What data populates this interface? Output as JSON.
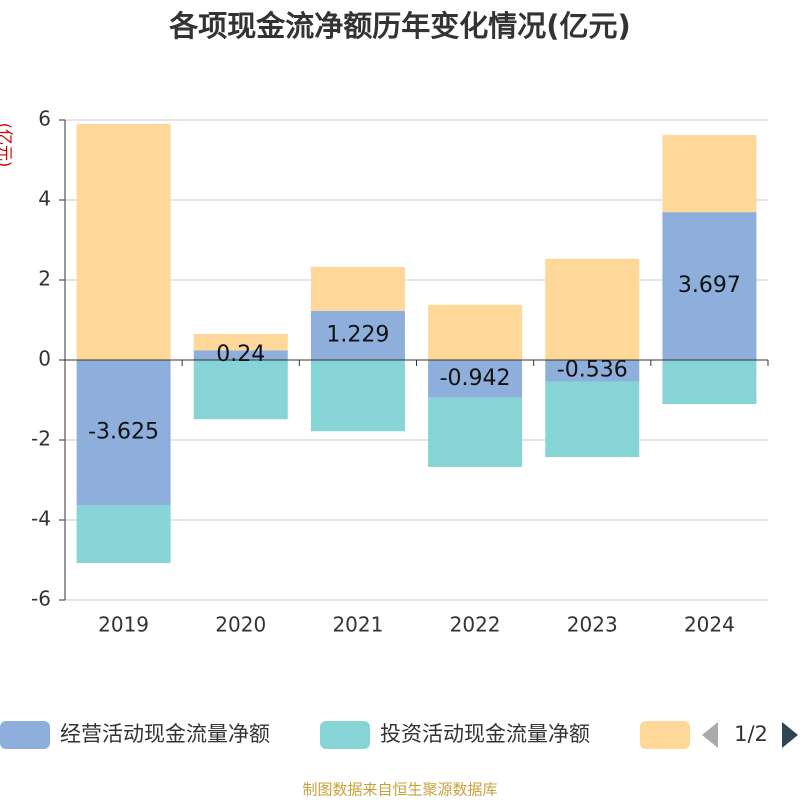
{
  "chart_data": {
    "type": "bar",
    "stacked": true,
    "title": "各项现金流净额历年变化情况(亿元)",
    "ylabel": "(亿元)",
    "categories": [
      "2019",
      "2020",
      "2021",
      "2022",
      "2023",
      "2024"
    ],
    "series": [
      {
        "name": "经营活动现金流量净额",
        "color": "#8eaedb",
        "labels": true,
        "values": [
          -3.625,
          0.24,
          1.229,
          -0.942,
          -0.536,
          3.697
        ]
      },
      {
        "name": "投资活动现金流量净额",
        "color": "#86d4d6",
        "values": [
          -1.45,
          -1.48,
          -1.78,
          -1.73,
          -1.89,
          -1.1
        ]
      },
      {
        "color": "#fdd898",
        "values": [
          5.9,
          0.41,
          1.1,
          1.38,
          2.53,
          1.93
        ]
      }
    ],
    "ylim": [
      -6,
      6
    ],
    "yticks": [
      -6,
      -4,
      -2,
      0,
      2,
      4,
      6
    ],
    "grid": true,
    "legend_page": "1/2",
    "source": "制图数据来自恒生聚源数据库"
  }
}
